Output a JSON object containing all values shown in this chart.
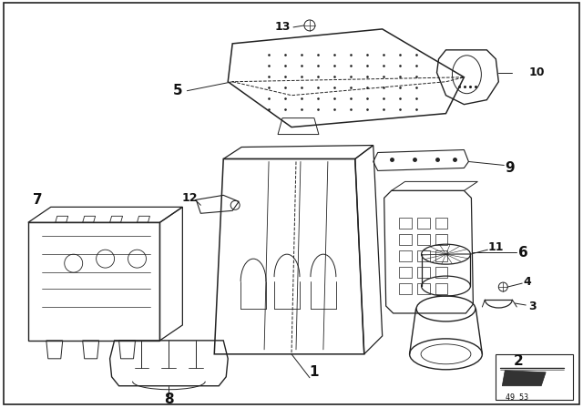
{
  "bg_color": "#ffffff",
  "border_color": "#222222",
  "fig_bg": "#ffffff",
  "watermark_text": "49 53",
  "line_color": "#222222",
  "text_color": "#111111",
  "bold_labels": [
    "1",
    "2",
    "3",
    "4",
    "5",
    "6",
    "7",
    "8",
    "9",
    "10",
    "11",
    "12",
    "13"
  ]
}
